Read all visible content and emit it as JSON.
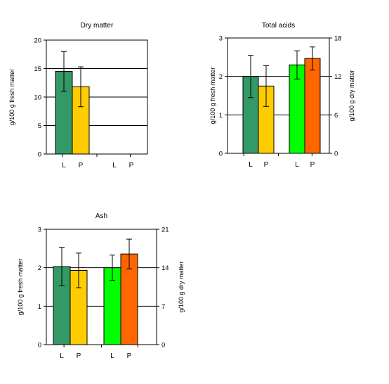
{
  "colors": {
    "dark_green": "#339966",
    "yellow": "#ffcc00",
    "bright_green": "#00ff00",
    "orange": "#ff6600",
    "axis": "#000000",
    "grid": "#000000"
  },
  "chart_data": [
    {
      "type": "bar",
      "title": "Dry matter",
      "ylabel": "g/100 g fresh matter",
      "ylabel_right": "",
      "ylim": [
        0,
        20
      ],
      "yticks": [
        "0",
        "5",
        "10",
        "15",
        "20"
      ],
      "grid": true,
      "categories": [
        "L",
        "P",
        "L",
        "P"
      ],
      "series": [
        {
          "values": [
            14.5,
            11.8,
            null,
            null
          ],
          "errors": [
            3.5,
            3.5,
            null,
            null
          ],
          "colors": [
            "dark_green",
            "yellow",
            "bright_green",
            "orange"
          ]
        }
      ]
    },
    {
      "type": "bar",
      "title": "Total acids",
      "ylabel": "g/100 g fresh matter",
      "ylabel_right": "g/100 g dry matter",
      "ylim": [
        0,
        3
      ],
      "yticks": [
        "0",
        "1",
        "2",
        "3"
      ],
      "ylim_right": [
        0,
        18
      ],
      "yticks_right": [
        "0",
        "6",
        "12",
        "18"
      ],
      "grid": true,
      "categories": [
        "L",
        "P",
        "L",
        "P"
      ],
      "series": [
        {
          "axis": "left",
          "values": [
            2.0,
            1.75,
            null,
            null
          ],
          "errors": [
            0.55,
            0.53,
            null,
            null
          ],
          "colors": [
            "dark_green",
            "yellow",
            null,
            null
          ]
        },
        {
          "axis": "right",
          "values": [
            null,
            null,
            13.8,
            14.8
          ],
          "errors": [
            null,
            null,
            2.2,
            1.8
          ],
          "colors": [
            null,
            null,
            "bright_green",
            "orange"
          ]
        }
      ]
    },
    {
      "type": "bar",
      "title": "Ash",
      "ylabel": "g/100 g fresh matter",
      "ylabel_right": "g/100 g dry matter",
      "ylim": [
        0,
        3
      ],
      "yticks": [
        "0",
        "1",
        "2",
        "3"
      ],
      "ylim_right": [
        0,
        21
      ],
      "yticks_right": [
        "0",
        "7",
        "14",
        "21"
      ],
      "grid": true,
      "categories": [
        "L",
        "P",
        "L",
        "P"
      ],
      "series": [
        {
          "axis": "left",
          "values": [
            2.03,
            1.93,
            null,
            null
          ],
          "errors": [
            0.5,
            0.45,
            null,
            null
          ],
          "colors": [
            "dark_green",
            "yellow",
            null,
            null
          ]
        },
        {
          "axis": "right",
          "values": [
            null,
            null,
            14.0,
            16.5
          ],
          "errors": [
            null,
            null,
            2.3,
            2.7
          ],
          "colors": [
            null,
            null,
            "bright_green",
            "orange"
          ]
        }
      ]
    }
  ]
}
